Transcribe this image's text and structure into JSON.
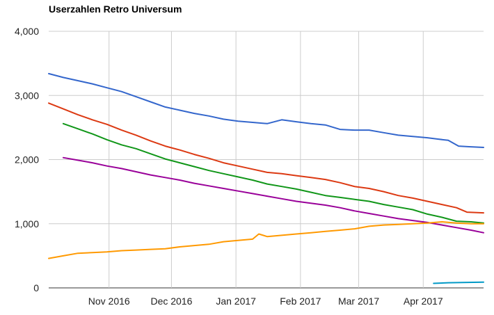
{
  "chart_data": {
    "type": "line",
    "title": "Userzahlen Retro Universum",
    "xlabel": "",
    "ylabel": "",
    "ylim": [
      0,
      4000
    ],
    "xlim": [
      "2016-10-03",
      "2017-04-30"
    ],
    "grid": true,
    "legend": "none",
    "y_ticks": [
      {
        "value": 0,
        "label": "0"
      },
      {
        "value": 1000,
        "label": "1,000"
      },
      {
        "value": 2000,
        "label": "2,000"
      },
      {
        "value": 3000,
        "label": "3,000"
      },
      {
        "value": 4000,
        "label": "4,000"
      }
    ],
    "x_ticks": [
      {
        "date": "2016-11-01",
        "label": "Nov 2016"
      },
      {
        "date": "2016-12-01",
        "label": "Dec 2016"
      },
      {
        "date": "2017-01-01",
        "label": "Jan 2017"
      },
      {
        "date": "2017-02-01",
        "label": "Feb 2017"
      },
      {
        "date": "2017-03-01",
        "label": "Mar 2017"
      },
      {
        "date": "2017-04-01",
        "label": "Apr 2017"
      }
    ],
    "series": [
      {
        "color": "#3366cc",
        "points": [
          [
            "2016-10-03",
            3340
          ],
          [
            "2016-10-10",
            3280
          ],
          [
            "2016-10-17",
            3230
          ],
          [
            "2016-10-24",
            3180
          ],
          [
            "2016-10-31",
            3120
          ],
          [
            "2016-11-07",
            3060
          ],
          [
            "2016-11-14",
            2980
          ],
          [
            "2016-11-21",
            2900
          ],
          [
            "2016-11-28",
            2820
          ],
          [
            "2016-12-05",
            2770
          ],
          [
            "2016-12-12",
            2720
          ],
          [
            "2016-12-19",
            2680
          ],
          [
            "2016-12-26",
            2630
          ],
          [
            "2017-01-02",
            2600
          ],
          [
            "2017-01-09",
            2580
          ],
          [
            "2017-01-16",
            2560
          ],
          [
            "2017-01-23",
            2620
          ],
          [
            "2017-01-30",
            2590
          ],
          [
            "2017-02-06",
            2560
          ],
          [
            "2017-02-13",
            2540
          ],
          [
            "2017-02-20",
            2470
          ],
          [
            "2017-02-27",
            2460
          ],
          [
            "2017-03-06",
            2460
          ],
          [
            "2017-03-13",
            2420
          ],
          [
            "2017-03-20",
            2380
          ],
          [
            "2017-03-27",
            2360
          ],
          [
            "2017-04-03",
            2340
          ],
          [
            "2017-04-08",
            2320
          ],
          [
            "2017-04-13",
            2300
          ],
          [
            "2017-04-18",
            2210
          ],
          [
            "2017-04-23",
            2200
          ],
          [
            "2017-04-30",
            2190
          ]
        ]
      },
      {
        "color": "#dc3912",
        "points": [
          [
            "2016-10-03",
            2880
          ],
          [
            "2016-10-10",
            2790
          ],
          [
            "2016-10-17",
            2700
          ],
          [
            "2016-10-24",
            2620
          ],
          [
            "2016-10-31",
            2550
          ],
          [
            "2016-11-07",
            2460
          ],
          [
            "2016-11-14",
            2380
          ],
          [
            "2016-11-21",
            2290
          ],
          [
            "2016-11-28",
            2210
          ],
          [
            "2016-12-05",
            2150
          ],
          [
            "2016-12-12",
            2080
          ],
          [
            "2016-12-19",
            2020
          ],
          [
            "2016-12-26",
            1950
          ],
          [
            "2017-01-02",
            1900
          ],
          [
            "2017-01-09",
            1850
          ],
          [
            "2017-01-16",
            1800
          ],
          [
            "2017-01-23",
            1780
          ],
          [
            "2017-01-30",
            1750
          ],
          [
            "2017-02-06",
            1720
          ],
          [
            "2017-02-13",
            1690
          ],
          [
            "2017-02-20",
            1640
          ],
          [
            "2017-02-27",
            1580
          ],
          [
            "2017-03-06",
            1550
          ],
          [
            "2017-03-13",
            1500
          ],
          [
            "2017-03-20",
            1440
          ],
          [
            "2017-03-27",
            1400
          ],
          [
            "2017-04-03",
            1350
          ],
          [
            "2017-04-10",
            1300
          ],
          [
            "2017-04-17",
            1250
          ],
          [
            "2017-04-22",
            1180
          ],
          [
            "2017-04-30",
            1170
          ]
        ]
      },
      {
        "color": "#109618",
        "points": [
          [
            "2016-10-10",
            2560
          ],
          [
            "2016-10-17",
            2480
          ],
          [
            "2016-10-24",
            2400
          ],
          [
            "2016-10-31",
            2310
          ],
          [
            "2016-11-07",
            2230
          ],
          [
            "2016-11-14",
            2170
          ],
          [
            "2016-11-21",
            2090
          ],
          [
            "2016-11-28",
            2010
          ],
          [
            "2016-12-05",
            1950
          ],
          [
            "2016-12-12",
            1890
          ],
          [
            "2016-12-19",
            1830
          ],
          [
            "2016-12-26",
            1780
          ],
          [
            "2017-01-02",
            1730
          ],
          [
            "2017-01-09",
            1680
          ],
          [
            "2017-01-16",
            1620
          ],
          [
            "2017-01-23",
            1580
          ],
          [
            "2017-01-30",
            1540
          ],
          [
            "2017-02-06",
            1490
          ],
          [
            "2017-02-13",
            1440
          ],
          [
            "2017-02-20",
            1410
          ],
          [
            "2017-02-27",
            1380
          ],
          [
            "2017-03-06",
            1350
          ],
          [
            "2017-03-13",
            1300
          ],
          [
            "2017-03-20",
            1260
          ],
          [
            "2017-03-27",
            1220
          ],
          [
            "2017-04-03",
            1150
          ],
          [
            "2017-04-10",
            1100
          ],
          [
            "2017-04-17",
            1040
          ],
          [
            "2017-04-24",
            1030
          ],
          [
            "2017-04-30",
            1010
          ]
        ]
      },
      {
        "color": "#990099",
        "points": [
          [
            "2016-10-10",
            2030
          ],
          [
            "2016-10-17",
            1990
          ],
          [
            "2016-10-24",
            1950
          ],
          [
            "2016-10-31",
            1900
          ],
          [
            "2016-11-07",
            1860
          ],
          [
            "2016-11-14",
            1810
          ],
          [
            "2016-11-21",
            1760
          ],
          [
            "2016-11-28",
            1720
          ],
          [
            "2016-12-05",
            1680
          ],
          [
            "2016-12-12",
            1630
          ],
          [
            "2016-12-19",
            1590
          ],
          [
            "2016-12-26",
            1550
          ],
          [
            "2017-01-02",
            1510
          ],
          [
            "2017-01-09",
            1470
          ],
          [
            "2017-01-16",
            1430
          ],
          [
            "2017-01-23",
            1390
          ],
          [
            "2017-01-30",
            1350
          ],
          [
            "2017-02-06",
            1320
          ],
          [
            "2017-02-13",
            1290
          ],
          [
            "2017-02-20",
            1250
          ],
          [
            "2017-02-27",
            1200
          ],
          [
            "2017-03-06",
            1160
          ],
          [
            "2017-03-13",
            1120
          ],
          [
            "2017-03-20",
            1080
          ],
          [
            "2017-03-27",
            1050
          ],
          [
            "2017-04-03",
            1020
          ],
          [
            "2017-04-10",
            980
          ],
          [
            "2017-04-17",
            940
          ],
          [
            "2017-04-24",
            900
          ],
          [
            "2017-04-30",
            860
          ]
        ]
      },
      {
        "color": "#ff9900",
        "points": [
          [
            "2016-10-03",
            460
          ],
          [
            "2016-10-10",
            500
          ],
          [
            "2016-10-17",
            540
          ],
          [
            "2016-10-24",
            550
          ],
          [
            "2016-10-31",
            560
          ],
          [
            "2016-11-07",
            580
          ],
          [
            "2016-11-14",
            590
          ],
          [
            "2016-11-21",
            600
          ],
          [
            "2016-11-28",
            610
          ],
          [
            "2016-12-05",
            640
          ],
          [
            "2016-12-12",
            660
          ],
          [
            "2016-12-19",
            680
          ],
          [
            "2016-12-26",
            720
          ],
          [
            "2017-01-02",
            740
          ],
          [
            "2017-01-09",
            760
          ],
          [
            "2017-01-12",
            840
          ],
          [
            "2017-01-16",
            800
          ],
          [
            "2017-01-23",
            820
          ],
          [
            "2017-01-30",
            840
          ],
          [
            "2017-02-06",
            860
          ],
          [
            "2017-02-13",
            880
          ],
          [
            "2017-02-20",
            900
          ],
          [
            "2017-02-27",
            920
          ],
          [
            "2017-03-06",
            960
          ],
          [
            "2017-03-13",
            980
          ],
          [
            "2017-03-20",
            990
          ],
          [
            "2017-03-27",
            1000
          ],
          [
            "2017-04-03",
            1010
          ],
          [
            "2017-04-10",
            1030
          ],
          [
            "2017-04-17",
            1010
          ],
          [
            "2017-04-24",
            1000
          ],
          [
            "2017-04-30",
            1000
          ]
        ]
      },
      {
        "color": "#0099c6",
        "points": [
          [
            "2017-04-06",
            70
          ],
          [
            "2017-04-13",
            80
          ],
          [
            "2017-04-20",
            85
          ],
          [
            "2017-04-30",
            90
          ]
        ]
      }
    ]
  }
}
